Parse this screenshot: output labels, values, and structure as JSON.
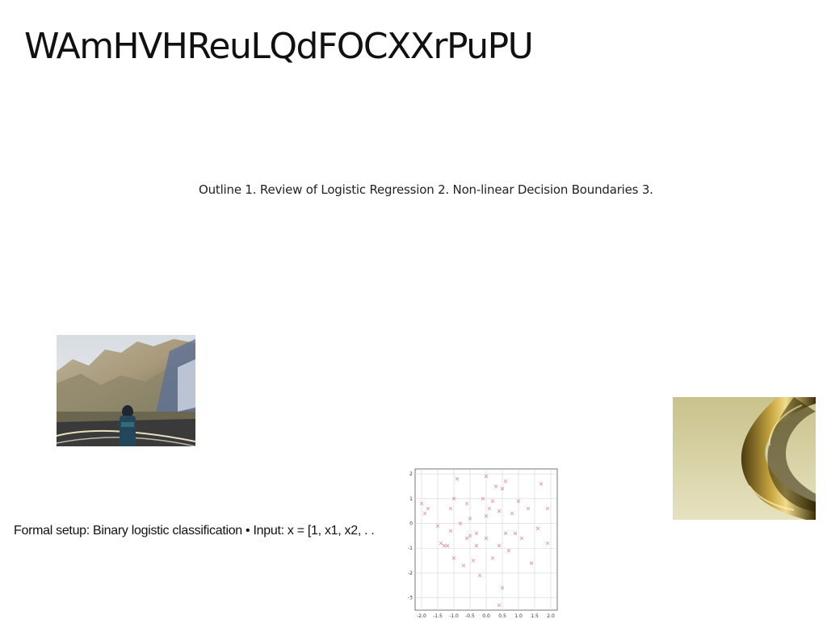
{
  "slide": {
    "title": "WAmHVHReuLQdFOCXXrPuPU",
    "outline_text": "Outline 1. Review of Logistic Regression 2. Non-linear Decision Boundaries 3.",
    "formal_setup_text": "Formal setup: Binary logistic classification • Input: x = [1, x1, x2, . ."
  },
  "chart_data": {
    "type": "scatter",
    "title": "",
    "xlabel": "",
    "ylabel": "",
    "xlim": [
      -2.2,
      2.2
    ],
    "ylim": [
      -3.5,
      2.2
    ],
    "grid": true,
    "marker": "x",
    "marker_color": "#e08fa0",
    "x_ticks": [
      "-2.0",
      "-1.5",
      "-1.0",
      "-0.5",
      "0.0",
      "0.5",
      "1.0",
      "1.5",
      "2.0"
    ],
    "y_ticks": [
      "2",
      "1",
      "0",
      "-1",
      "-2",
      "-3"
    ],
    "points": [
      [
        -2.0,
        0.8
      ],
      [
        -1.9,
        0.4
      ],
      [
        -1.8,
        0.6
      ],
      [
        -1.5,
        -0.1
      ],
      [
        -1.3,
        -0.9
      ],
      [
        -1.1,
        0.6
      ],
      [
        -1.1,
        -0.3
      ],
      [
        -1.0,
        1.0
      ],
      [
        -1.0,
        -1.4
      ],
      [
        -0.9,
        1.8
      ],
      [
        -0.8,
        0.0
      ],
      [
        -0.7,
        -1.7
      ],
      [
        -0.6,
        0.8
      ],
      [
        -0.6,
        -0.6
      ],
      [
        -0.5,
        0.2
      ],
      [
        -0.5,
        -0.5
      ],
      [
        -0.4,
        -1.5
      ],
      [
        -0.3,
        -0.9
      ],
      [
        -0.2,
        -2.1
      ],
      [
        -0.1,
        1.0
      ],
      [
        0.0,
        1.9
      ],
      [
        0.0,
        0.3
      ],
      [
        0.0,
        -0.6
      ],
      [
        0.1,
        0.6
      ],
      [
        0.2,
        0.9
      ],
      [
        0.3,
        1.5
      ],
      [
        0.4,
        0.5
      ],
      [
        0.4,
        -0.9
      ],
      [
        0.5,
        1.4
      ],
      [
        0.5,
        -2.6
      ],
      [
        0.6,
        1.7
      ],
      [
        0.6,
        -0.4
      ],
      [
        0.7,
        -1.1
      ],
      [
        0.8,
        0.4
      ],
      [
        0.9,
        -0.4
      ],
      [
        1.0,
        0.9
      ],
      [
        1.1,
        -0.6
      ],
      [
        1.3,
        0.6
      ],
      [
        1.4,
        -1.6
      ],
      [
        1.6,
        -0.2
      ],
      [
        1.7,
        1.6
      ],
      [
        1.9,
        0.6
      ],
      [
        1.9,
        -0.8
      ],
      [
        -1.2,
        -0.9
      ],
      [
        0.4,
        -3.3
      ],
      [
        -0.3,
        -0.4
      ],
      [
        0.2,
        -1.4
      ],
      [
        -1.4,
        -0.8
      ]
    ]
  },
  "images": {
    "photo_left": "mountain-road-photo",
    "photo_right": "gold-sculpture-photo"
  }
}
